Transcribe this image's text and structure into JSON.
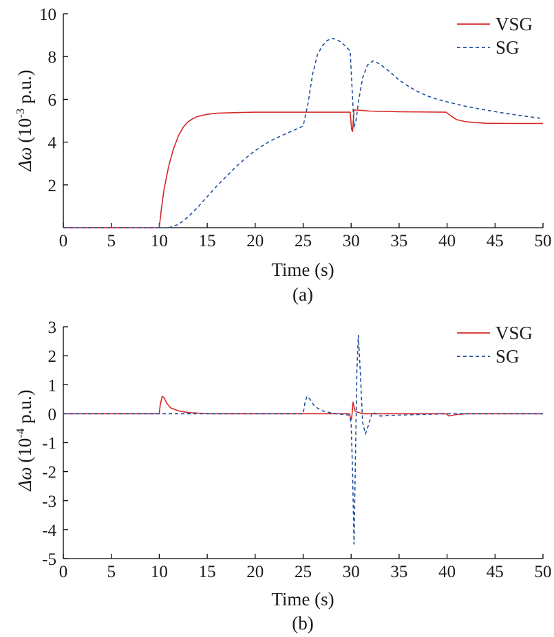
{
  "chart_data": [
    {
      "type": "line",
      "caption": "(a)",
      "xlabel": "Time (s)",
      "ylabel_prefix": "Δω",
      "ylabel_unit_base": "(10",
      "ylabel_unit_exp": "-3",
      "ylabel_unit_suffix": " p.u.)",
      "xlim": [
        0,
        50
      ],
      "ylim": [
        0,
        10
      ],
      "x_ticks": [
        0,
        5,
        10,
        15,
        20,
        25,
        30,
        35,
        40,
        45,
        50
      ],
      "y_ticks": [
        2,
        4,
        6,
        8,
        10
      ],
      "legend_position": "top-right",
      "series": [
        {
          "name": "VSG",
          "color": "#d62728",
          "style": "solid",
          "points": [
            [
              0,
              0
            ],
            [
              10,
              0
            ],
            [
              10.2,
              0.8
            ],
            [
              10.5,
              1.8
            ],
            [
              11,
              2.9
            ],
            [
              11.5,
              3.7
            ],
            [
              12,
              4.3
            ],
            [
              12.5,
              4.7
            ],
            [
              13,
              4.95
            ],
            [
              13.5,
              5.1
            ],
            [
              14,
              5.2
            ],
            [
              15,
              5.3
            ],
            [
              16,
              5.35
            ],
            [
              18,
              5.38
            ],
            [
              20,
              5.4
            ],
            [
              25,
              5.4
            ],
            [
              29.9,
              5.4
            ],
            [
              30.05,
              4.6
            ],
            [
              30.15,
              4.5
            ],
            [
              30.3,
              5.5
            ],
            [
              30.6,
              5.5
            ],
            [
              32,
              5.45
            ],
            [
              35,
              5.42
            ],
            [
              39.9,
              5.4
            ],
            [
              40.5,
              5.2
            ],
            [
              41,
              5.05
            ],
            [
              42,
              4.95
            ],
            [
              44,
              4.88
            ],
            [
              47,
              4.87
            ],
            [
              50,
              4.87
            ]
          ]
        },
        {
          "name": "SG",
          "color": "#1f4e9c",
          "style": "dashed",
          "points": [
            [
              0,
              0
            ],
            [
              11,
              0
            ],
            [
              12,
              0.15
            ],
            [
              13,
              0.5
            ],
            [
              14,
              0.95
            ],
            [
              15,
              1.45
            ],
            [
              16,
              1.95
            ],
            [
              17,
              2.4
            ],
            [
              18,
              2.85
            ],
            [
              19,
              3.25
            ],
            [
              20,
              3.6
            ],
            [
              21,
              3.9
            ],
            [
              22,
              4.15
            ],
            [
              23,
              4.35
            ],
            [
              24,
              4.55
            ],
            [
              25,
              4.75
            ],
            [
              25.5,
              5.8
            ],
            [
              26,
              7.2
            ],
            [
              26.5,
              8.1
            ],
            [
              27,
              8.5
            ],
            [
              27.5,
              8.75
            ],
            [
              28,
              8.85
            ],
            [
              28.5,
              8.8
            ],
            [
              29,
              8.65
            ],
            [
              29.5,
              8.45
            ],
            [
              29.9,
              8.25
            ],
            [
              30.1,
              6.5
            ],
            [
              30.3,
              4.7
            ],
            [
              30.5,
              5.0
            ],
            [
              30.8,
              6.0
            ],
            [
              31.2,
              7.0
            ],
            [
              31.7,
              7.6
            ],
            [
              32.3,
              7.8
            ],
            [
              33,
              7.65
            ],
            [
              34,
              7.3
            ],
            [
              35,
              6.9
            ],
            [
              36,
              6.6
            ],
            [
              37,
              6.35
            ],
            [
              38,
              6.15
            ],
            [
              39,
              6.0
            ],
            [
              40,
              5.88
            ],
            [
              42,
              5.67
            ],
            [
              44,
              5.5
            ],
            [
              46,
              5.35
            ],
            [
              48,
              5.22
            ],
            [
              50,
              5.1
            ]
          ]
        }
      ]
    },
    {
      "type": "line",
      "caption": "(b)",
      "xlabel": "Time (s)",
      "ylabel_prefix": "Δω",
      "ylabel_unit_base": "(10",
      "ylabel_unit_exp": "-4",
      "ylabel_unit_suffix": " p.u.)",
      "xlim": [
        0,
        50
      ],
      "ylim": [
        -5,
        3
      ],
      "x_ticks": [
        0,
        5,
        10,
        15,
        20,
        25,
        30,
        35,
        40,
        45,
        50
      ],
      "y_ticks": [
        -5,
        -4,
        -3,
        -2,
        -1,
        0,
        1,
        2,
        3
      ],
      "legend_position": "top-right",
      "series": [
        {
          "name": "VSG",
          "color": "#d62728",
          "style": "solid",
          "points": [
            [
              0,
              0
            ],
            [
              10,
              0
            ],
            [
              10.1,
              0.3
            ],
            [
              10.3,
              0.6
            ],
            [
              10.5,
              0.55
            ],
            [
              10.8,
              0.35
            ],
            [
              11.2,
              0.2
            ],
            [
              12,
              0.1
            ],
            [
              13,
              0.04
            ],
            [
              14,
              0.02
            ],
            [
              15,
              0
            ],
            [
              29.8,
              0
            ],
            [
              30.05,
              -0.2
            ],
            [
              30.2,
              0.4
            ],
            [
              30.4,
              0.1
            ],
            [
              30.7,
              0.05
            ],
            [
              31.2,
              0
            ],
            [
              39.9,
              0
            ],
            [
              40.2,
              -0.08
            ],
            [
              41,
              -0.03
            ],
            [
              42,
              0
            ],
            [
              50,
              0
            ]
          ]
        },
        {
          "name": "SG",
          "color": "#1f4e9c",
          "style": "dashed",
          "points": [
            [
              0,
              0
            ],
            [
              25,
              0
            ],
            [
              25.2,
              0.4
            ],
            [
              25.4,
              0.6
            ],
            [
              25.7,
              0.5
            ],
            [
              26.2,
              0.25
            ],
            [
              27,
              0.1
            ],
            [
              28,
              0.02
            ],
            [
              29,
              -0.02
            ],
            [
              29.8,
              -0.05
            ],
            [
              30,
              -0.3
            ],
            [
              30.15,
              -2.0
            ],
            [
              30.3,
              -4.5
            ],
            [
              30.45,
              -1.5
            ],
            [
              30.6,
              1.5
            ],
            [
              30.75,
              2.7
            ],
            [
              30.95,
              1.5
            ],
            [
              31.2,
              -0.3
            ],
            [
              31.5,
              -0.7
            ],
            [
              31.8,
              -0.4
            ],
            [
              32.2,
              0.05
            ],
            [
              32.6,
              0
            ],
            [
              33,
              -0.08
            ],
            [
              35,
              -0.05
            ],
            [
              38,
              -0.02
            ],
            [
              40,
              0
            ],
            [
              50,
              0
            ]
          ]
        }
      ]
    }
  ]
}
